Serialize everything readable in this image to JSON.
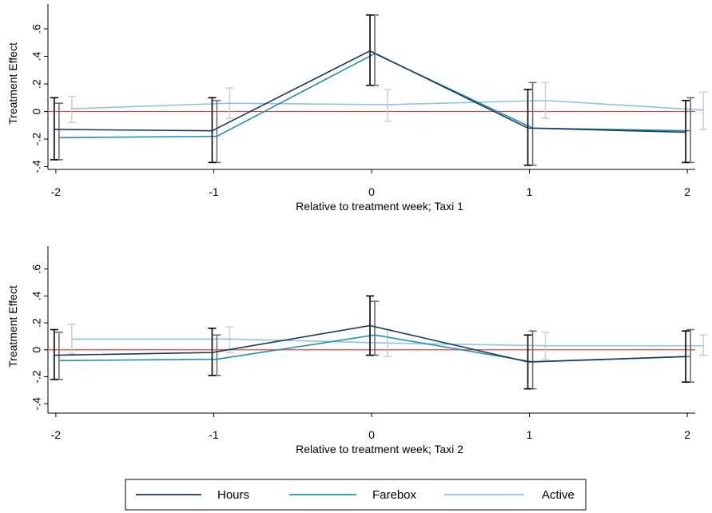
{
  "chart_data": [
    {
      "type": "line",
      "xlabel": "Relative to treatment week; Taxi 1",
      "ylabel": "Treatment Effect",
      "x": [
        -2,
        -1,
        0,
        1,
        2
      ],
      "x_tick_labels": [
        "-2",
        "-1",
        "0",
        "1",
        "2"
      ],
      "y_tick_values": [
        -0.4,
        -0.2,
        0,
        0.2,
        0.4,
        0.6
      ],
      "y_tick_labels": [
        "-.4",
        "-.2",
        "0",
        ".2",
        ".4",
        ".6"
      ],
      "ylim": [
        -0.42,
        0.78
      ],
      "xlim": [
        -2.05,
        2.05
      ],
      "reference_line": 0,
      "series": [
        {
          "name": "Hours",
          "estimate": [
            -0.13,
            -0.14,
            0.44,
            -0.12,
            -0.15
          ],
          "ci_low": [
            -0.35,
            -0.37,
            0.19,
            -0.39,
            -0.37
          ],
          "ci_high": [
            0.1,
            0.1,
            0.7,
            0.16,
            0.08
          ]
        },
        {
          "name": "Farebox",
          "estimate": [
            -0.19,
            -0.18,
            0.42,
            -0.12,
            -0.14
          ],
          "ci_low": [
            -0.35,
            -0.37,
            0.19,
            -0.39,
            -0.37
          ],
          "ci_high": [
            0.06,
            0.08,
            0.7,
            0.21,
            0.1
          ]
        },
        {
          "name": "Active",
          "estimate": [
            0.02,
            0.06,
            0.05,
            0.08,
            0.01
          ],
          "ci_low": [
            -0.08,
            -0.05,
            -0.07,
            -0.05,
            -0.13
          ],
          "ci_high": [
            0.11,
            0.17,
            0.16,
            0.21,
            0.14
          ]
        }
      ]
    },
    {
      "type": "line",
      "xlabel": "Relative to treatment week; Taxi 2",
      "ylabel": "Treatment Effect",
      "x": [
        -2,
        -1,
        0,
        1,
        2
      ],
      "x_tick_labels": [
        "-2",
        "-1",
        "0",
        "1",
        "2"
      ],
      "y_tick_values": [
        -0.4,
        -0.2,
        0,
        0.2,
        0.4,
        0.6
      ],
      "y_tick_labels": [
        "-.4",
        "-.2",
        "0",
        ".2",
        ".4",
        ".6"
      ],
      "ylim": [
        -0.47,
        0.77
      ],
      "xlim": [
        -2.05,
        2.05
      ],
      "reference_line": 0,
      "series": [
        {
          "name": "Hours",
          "estimate": [
            -0.04,
            -0.02,
            0.18,
            -0.09,
            -0.05
          ],
          "ci_low": [
            -0.22,
            -0.19,
            -0.04,
            -0.29,
            -0.24
          ],
          "ci_high": [
            0.15,
            0.16,
            0.4,
            0.11,
            0.14
          ]
        },
        {
          "name": "Farebox",
          "estimate": [
            -0.08,
            -0.07,
            0.11,
            -0.09,
            -0.05
          ],
          "ci_low": [
            -0.22,
            -0.19,
            -0.04,
            -0.29,
            -0.24
          ],
          "ci_high": [
            0.13,
            0.11,
            0.36,
            0.14,
            0.15
          ]
        },
        {
          "name": "Active",
          "estimate": [
            0.08,
            0.08,
            0.05,
            0.03,
            0.03
          ],
          "ci_low": [
            -0.03,
            -0.02,
            -0.05,
            -0.07,
            -0.04
          ],
          "ci_high": [
            0.19,
            0.17,
            0.15,
            0.13,
            0.11
          ]
        }
      ]
    }
  ],
  "legend": {
    "placement": "bottom",
    "items": [
      "Hours",
      "Farebox",
      "Active"
    ]
  },
  "colors": {
    "Hours": "#1a3a5c",
    "Farebox": "#1f8fb8",
    "Active": "#8ec3e6",
    "ci_Hours": "#000000",
    "ci_Farebox": "#6e6e6e",
    "ci_Active": "#d0d0d0",
    "reference": "#e8413c"
  }
}
